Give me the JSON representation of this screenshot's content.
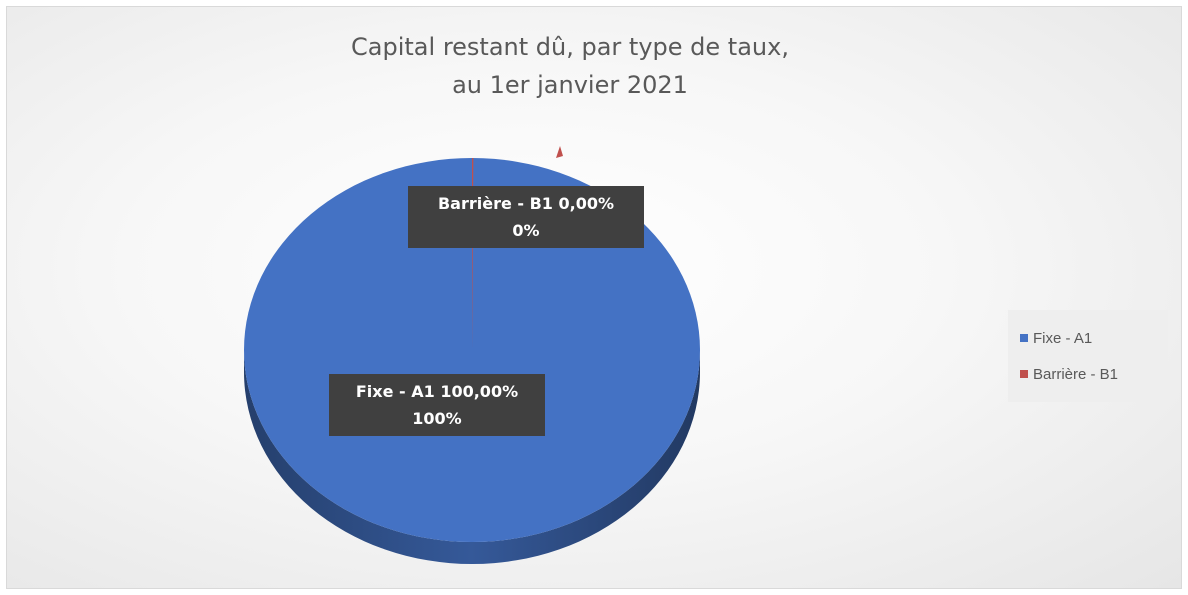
{
  "chart_data": {
    "type": "pie",
    "title_lines": [
      "Capital restant dû, par type de taux,",
      "au 1er janvier 2021"
    ],
    "categories": [
      "Fixe - A1",
      "Barrière - B1"
    ],
    "values": [
      100,
      0
    ],
    "colors": [
      "#4472c4",
      "#c0504d"
    ],
    "legend_position": "right",
    "data_labels": [
      {
        "name_value": "Fixe - A1 100,00%",
        "percent": "100%"
      },
      {
        "name_value": "Barrière - B1 0,00%",
        "percent": "0%"
      }
    ]
  }
}
